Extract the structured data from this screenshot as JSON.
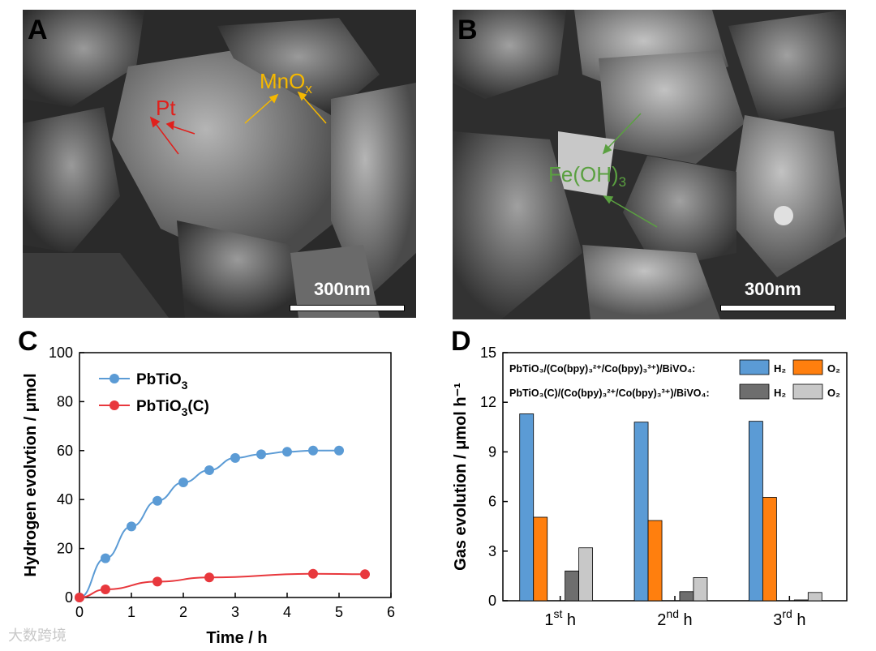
{
  "panels": {
    "A": {
      "letter": "A",
      "labels": {
        "pt": "Pt",
        "mnox_main": "MnO",
        "mnox_sub": "x"
      },
      "scale_bar": "300nm"
    },
    "B": {
      "letter": "B",
      "labels": {
        "feoh_main": "Fe(OH)",
        "feoh_sub": "3"
      },
      "scale_bar": "300nm"
    },
    "C": {
      "letter": "C"
    },
    "D": {
      "letter": "D"
    }
  },
  "colors": {
    "blue": "#5b9bd5",
    "red": "#e8383d",
    "orange": "#ff7f0e",
    "dark_gray": "#6e6e6e",
    "light_gray": "#c8c8c8",
    "pt_label": "#e0201c",
    "mnox_label": "#f5b800",
    "feoh_label": "#5aa040"
  },
  "watermark": "大数跨境",
  "chart_data": [
    {
      "type": "line",
      "xlabel": "Time / h",
      "ylabel": "Hydrogen evolvtion / μmol",
      "xlim": [
        0,
        6
      ],
      "ylim": [
        0,
        100
      ],
      "xticks": [
        "0",
        "1",
        "2",
        "3",
        "4",
        "5",
        "6"
      ],
      "yticks": [
        "0",
        "20",
        "40",
        "60",
        "80",
        "100"
      ],
      "legend_position": "top-left",
      "series": [
        {
          "name": "PbTiO3",
          "name_main": "PbTiO",
          "name_sub": "3",
          "name_tail": "",
          "color": "#5b9bd5",
          "x": [
            0,
            0.5,
            1,
            1.5,
            2,
            2.5,
            3,
            3.5,
            4,
            4.5,
            5
          ],
          "y": [
            0,
            16,
            29,
            39.5,
            47,
            52,
            57,
            58.5,
            59.5,
            60,
            60
          ]
        },
        {
          "name": "PbTiO3(C)",
          "name_main": "PbTiO",
          "name_sub": "3",
          "name_tail": "(C)",
          "color": "#e8383d",
          "x": [
            0,
            0.5,
            1.5,
            2.5,
            4.5,
            5.5
          ],
          "y": [
            0,
            3.3,
            6.5,
            8.2,
            9.7,
            9.5
          ]
        }
      ]
    },
    {
      "type": "bar",
      "ylabel": "Gas evolution / μmol h⁻¹",
      "ylim": [
        0,
        15
      ],
      "yticks": [
        "0",
        "3",
        "6",
        "9",
        "12",
        "15"
      ],
      "categories": [
        "1st h",
        "2nd h",
        "3rd h"
      ],
      "category_labels": [
        {
          "num": "1",
          "sup": "st",
          "unit": " h"
        },
        {
          "num": "2",
          "sup": "nd",
          "unit": " h"
        },
        {
          "num": "3",
          "sup": "rd",
          "unit": " h"
        }
      ],
      "legend_position": "top",
      "legend_rows": [
        {
          "label": "PbTiO₃/(Co(bpy)₃²⁺/Co(bpy)₃³⁺)/BiVO₄:",
          "h2": "H₂",
          "o2": "O₂"
        },
        {
          "label": "PbTiO₃(C)/(Co(bpy)₃²⁺/Co(bpy)₃³⁺)/BiVO₄:",
          "h2": "H₂",
          "o2": "O₂"
        }
      ],
      "series": [
        {
          "name": "PbTiO3 H2",
          "color": "#5b9bd5",
          "values": [
            11.3,
            10.8,
            10.85
          ]
        },
        {
          "name": "PbTiO3 O2",
          "color": "#ff7f0e",
          "values": [
            5.05,
            4.85,
            6.25
          ]
        },
        {
          "name": "PbTiO3(C) H2",
          "color": "#6e6e6e",
          "values": [
            1.8,
            0.55,
            0.05
          ]
        },
        {
          "name": "PbTiO3(C) O2",
          "color": "#c8c8c8",
          "values": [
            3.2,
            1.4,
            0.5
          ]
        }
      ]
    }
  ]
}
